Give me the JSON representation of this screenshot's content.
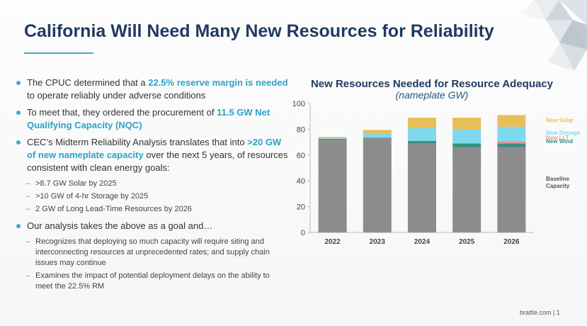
{
  "slide": {
    "title": "California Will Need Many New Resources for Reliability",
    "footer": "brattle.com | 1"
  },
  "bullets": {
    "b1_pre": "The CPUC determined that a ",
    "b1_hl": "22.5% reserve margin is needed",
    "b1_post": " to operate reliably under adverse conditions",
    "b2_pre": "To meet that, they ordered the procurement of ",
    "b2_hl": "11.5 GW Net Qualifying Capacity (NQC)",
    "b3_pre": "CEC’s Midterm Reliability Analysis translates that into ",
    "b3_hl": ">20 GW of new nameplate capacity",
    "b3_post": " over the next 5 years, of resources consistent with clean energy goals:",
    "b3_subs": [
      ">8.7 GW Solar by 2025",
      ">10 GW of 4-hr Storage by 2025",
      "2 GW of Long Lead-Time Resources by 2026"
    ],
    "b4": "Our analysis takes the above as a goal and…",
    "b4_subs": [
      "Recognizes that deploying so much capacity will require siting and interconnecting resources at unprecedented rates; and supply chain issues may continue",
      "Examines the impact of potential deployment delays on the ability to meet the 22.5% RM"
    ]
  },
  "chart_data": {
    "type": "bar",
    "stacked": true,
    "title": "New Resources Needed for Resource Adequacy",
    "subtitle": "(nameplate GW)",
    "categories": [
      "2022",
      "2023",
      "2024",
      "2025",
      "2026"
    ],
    "ylim": [
      0,
      100
    ],
    "yticks": [
      0,
      20,
      40,
      60,
      80,
      100
    ],
    "series": [
      {
        "name": "Baseline Capacity",
        "color": "#8c8c8c",
        "values": [
          72,
          73,
          69,
          66,
          66
        ]
      },
      {
        "name": "New Wind",
        "color": "#3a8f7f",
        "values": [
          0.5,
          0.5,
          2,
          3,
          3
        ]
      },
      {
        "name": "New LLT",
        "color": "#e59a9a",
        "values": [
          0,
          0,
          0,
          0,
          2
        ]
      },
      {
        "name": "New Storage",
        "color": "#7fd9ec",
        "values": [
          0.5,
          3,
          10,
          11,
          11
        ]
      },
      {
        "name": "New Solar",
        "color": "#e8bf57",
        "values": [
          1,
          3,
          8,
          9,
          9
        ]
      }
    ],
    "legend_position": "right",
    "grid": false
  }
}
